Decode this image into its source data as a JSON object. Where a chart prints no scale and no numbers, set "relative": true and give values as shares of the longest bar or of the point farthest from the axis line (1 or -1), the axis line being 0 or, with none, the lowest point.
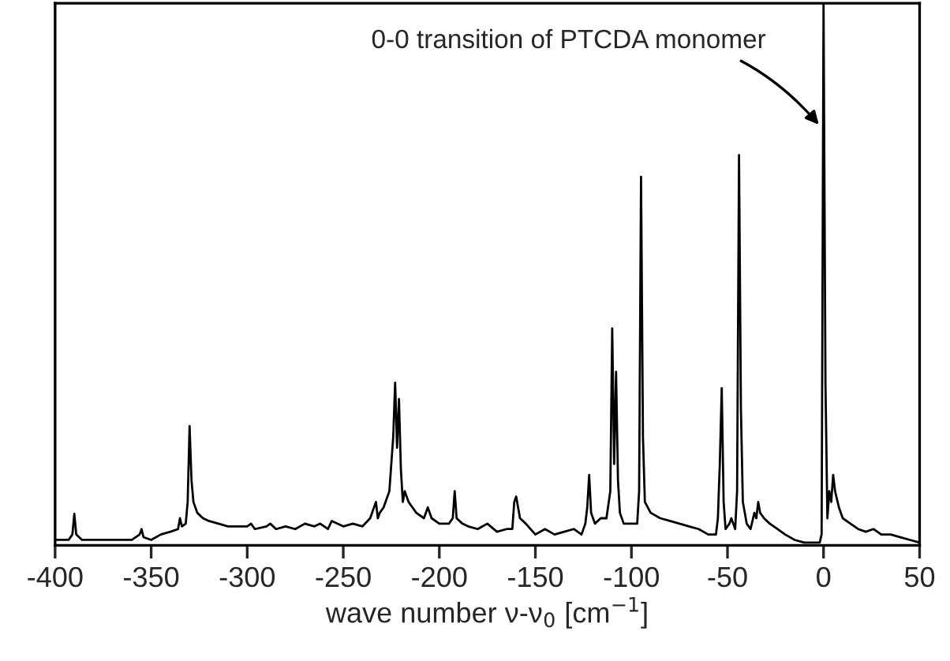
{
  "chart_data": {
    "type": "line",
    "relative": true,
    "xlabel": "wave number ν-ν$_{0}$ [cm$^{−1}$]",
    "xlim": [
      -400,
      50
    ],
    "xticks": [
      -400,
      -350,
      -300,
      -250,
      -200,
      -150,
      -100,
      -50,
      0,
      50
    ],
    "tick_labels": "x",
    "grid": false,
    "legend": false,
    "marker": "none",
    "line_style": "solid",
    "annotations": [
      {
        "text": "0-0 transition of PTCDA monomer",
        "x": -1,
        "y": 0.77
      }
    ],
    "series": [
      {
        "color": "#000000",
        "x": [
          -400,
          -393,
          -391,
          -390,
          -389,
          -386,
          -380,
          -370,
          -360,
          -356,
          -355,
          -354,
          -350,
          -345,
          -340,
          -336,
          -335,
          -334,
          -332,
          -331,
          -330,
          -329,
          -328,
          -326,
          -323,
          -320,
          -315,
          -310,
          -305,
          -300,
          -298,
          -296,
          -290,
          -288,
          -285,
          -280,
          -275,
          -270,
          -265,
          -262,
          -258,
          -256,
          -250,
          -245,
          -240,
          -236,
          -233,
          -232,
          -231,
          -229,
          -226,
          -224,
          -223,
          -222,
          -221,
          -220,
          -219,
          -218,
          -216,
          -214,
          -212,
          -208,
          -206,
          -204,
          -200,
          -195,
          -193,
          -192,
          -191,
          -188,
          -185,
          -180,
          -175,
          -170,
          -165,
          -162,
          -161,
          -160,
          -158,
          -155,
          -150,
          -145,
          -140,
          -135,
          -130,
          -126,
          -124,
          -123,
          -122,
          -121,
          -119,
          -116,
          -113,
          -111,
          -110,
          -109,
          -108,
          -107,
          -106,
          -104,
          -100,
          -97,
          -96,
          -95,
          -94,
          -93,
          -90,
          -85,
          -80,
          -75,
          -70,
          -65,
          -60,
          -56,
          -55,
          -54,
          -53,
          -52,
          -51,
          -49,
          -48,
          -47,
          -46,
          -45,
          -44,
          -43,
          -42,
          -40,
          -38,
          -36,
          -35,
          -34,
          -33,
          -31,
          -28,
          -24,
          -20,
          -15,
          -10,
          -5,
          -2,
          -1,
          0,
          1,
          2,
          3,
          4,
          5,
          6,
          8,
          10,
          14,
          18,
          22,
          26,
          30,
          35,
          40,
          45,
          50
        ],
        "values": [
          0.01,
          0.01,
          0.02,
          0.058,
          0.02,
          0.01,
          0.01,
          0.01,
          0.01,
          0.02,
          0.03,
          0.015,
          0.01,
          0.02,
          0.025,
          0.03,
          0.05,
          0.035,
          0.04,
          0.08,
          0.22,
          0.12,
          0.08,
          0.06,
          0.05,
          0.045,
          0.04,
          0.035,
          0.035,
          0.035,
          0.04,
          0.03,
          0.035,
          0.04,
          0.03,
          0.035,
          0.03,
          0.04,
          0.035,
          0.04,
          0.03,
          0.045,
          0.035,
          0.04,
          0.035,
          0.05,
          0.08,
          0.05,
          0.06,
          0.07,
          0.1,
          0.2,
          0.3,
          0.18,
          0.27,
          0.14,
          0.08,
          0.1,
          0.08,
          0.07,
          0.06,
          0.05,
          0.07,
          0.05,
          0.04,
          0.04,
          0.05,
          0.1,
          0.05,
          0.04,
          0.035,
          0.03,
          0.04,
          0.025,
          0.03,
          0.03,
          0.08,
          0.09,
          0.05,
          0.04,
          0.02,
          0.03,
          0.02,
          0.025,
          0.03,
          0.02,
          0.04,
          0.07,
          0.13,
          0.06,
          0.04,
          0.05,
          0.05,
          0.1,
          0.4,
          0.15,
          0.32,
          0.12,
          0.06,
          0.04,
          0.04,
          0.04,
          0.1,
          0.68,
          0.2,
          0.08,
          0.06,
          0.05,
          0.045,
          0.04,
          0.035,
          0.03,
          0.02,
          0.02,
          0.05,
          0.15,
          0.29,
          0.08,
          0.03,
          0.04,
          0.05,
          0.04,
          0.03,
          0.1,
          0.72,
          0.25,
          0.08,
          0.04,
          0.03,
          0.06,
          0.05,
          0.08,
          0.06,
          0.05,
          0.04,
          0.03,
          0.02,
          0.01,
          0.005,
          0.005,
          0.005,
          0.02,
          1.0,
          0.3,
          0.05,
          0.1,
          0.08,
          0.13,
          0.1,
          0.07,
          0.05,
          0.04,
          0.03,
          0.025,
          0.03,
          0.02,
          0.02,
          0.015,
          0.01,
          0.005
        ]
      }
    ]
  }
}
